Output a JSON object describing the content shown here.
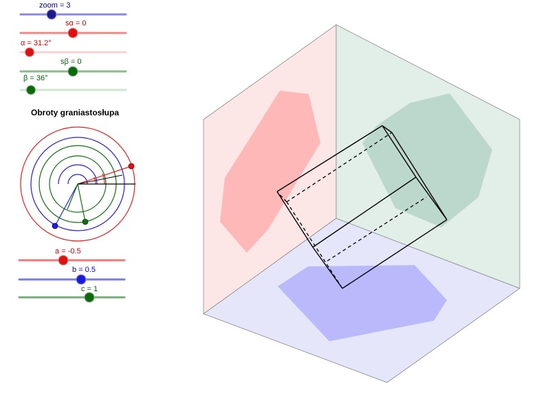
{
  "sliders": {
    "zoom": {
      "label": "zoom = 3",
      "value": 3,
      "color": "#5555cc"
    },
    "sa": {
      "label": "sα = 0",
      "value": 0,
      "color": "#cc0000"
    },
    "alpha": {
      "label": "α = 31.2°",
      "value": 31.2,
      "color": "#cc0000"
    },
    "sb": {
      "label": "sβ = 0",
      "value": 0,
      "color": "#006600"
    },
    "beta": {
      "label": "β = 36°",
      "value": 36,
      "color": "#006600"
    },
    "a": {
      "label": "a = -0.5",
      "value": -0.5,
      "color": "#cc0000"
    },
    "b": {
      "label": "b = 0.5",
      "value": 0.5,
      "color": "#0000cc"
    },
    "c": {
      "label": "c = 1",
      "value": 1,
      "color": "#006600"
    }
  },
  "panel_title": "Obroty graniastosłupa",
  "colors": {
    "left_wall": "#fde6e6",
    "back_wall": "#e2eee8",
    "floor": "#e6e6fa",
    "red_shadow": "#ffb8b8",
    "green_shadow": "#bcd8cc",
    "blue_shadow": "#b9b9fb"
  }
}
